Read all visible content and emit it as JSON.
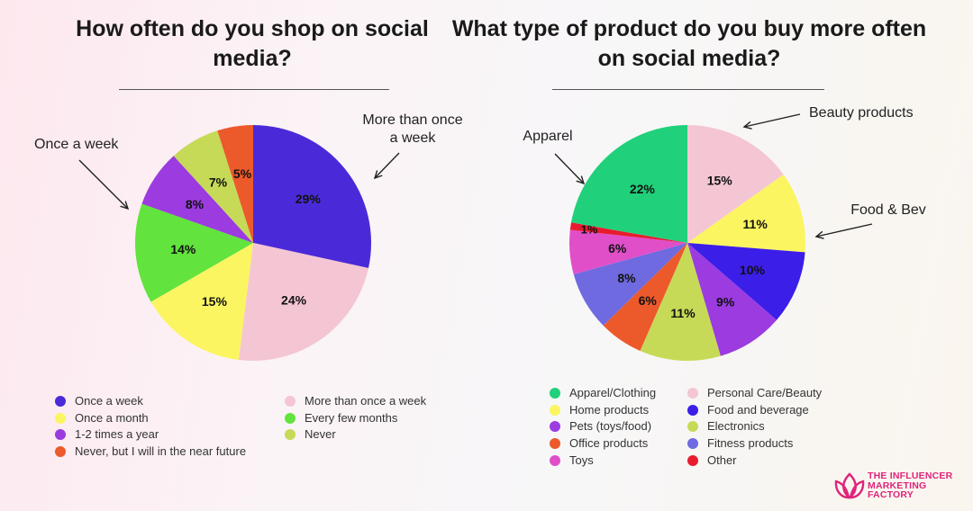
{
  "charts": {
    "left_title": "How often do you shop on social media?",
    "right_title": "What type of product do you buy more often on social media?"
  },
  "chart_data": [
    {
      "type": "pie",
      "title": "How often do you shop on social media?",
      "slices": [
        {
          "label": "Once a week",
          "value": 29,
          "display": "29%",
          "color": "#4a2ad8"
        },
        {
          "label": "More than once a week",
          "value": 24,
          "display": "24%",
          "color": "#f4c6d4"
        },
        {
          "label": "Once a month",
          "value": 15,
          "display": "15%",
          "color": "#fbf562"
        },
        {
          "label": "Every few months",
          "value": 14,
          "display": "14%",
          "color": "#62e33d"
        },
        {
          "label": "1-2 times a year",
          "value": 8,
          "display": "8%",
          "color": "#9b3be0"
        },
        {
          "label": "Never",
          "value": 7,
          "display": "7%",
          "color": "#c6da58"
        },
        {
          "label": "Never, but I will in the near future",
          "value": 5,
          "display": "5%",
          "color": "#ec5a2c"
        }
      ],
      "annotations": [
        "Once a week",
        "More than once\na week"
      ]
    },
    {
      "type": "pie",
      "title": "What type of product do you buy more often on social media?",
      "slices": [
        {
          "label": "Personal Care/Beauty",
          "value": 15,
          "display": "15%",
          "color": "#f4c6d4"
        },
        {
          "label": "Home products",
          "value": 11,
          "display": "11%",
          "color": "#fbf562"
        },
        {
          "label": "Food and beverage",
          "value": 10,
          "display": "10%",
          "color": "#3b1ee8"
        },
        {
          "label": "Pets (toys/food)",
          "value": 9,
          "display": "9%",
          "color": "#9b3be0"
        },
        {
          "label": "Electronics",
          "value": 11,
          "display": "11%",
          "color": "#c6da58"
        },
        {
          "label": "Office products",
          "value": 6,
          "display": "6%",
          "color": "#ec5a2c"
        },
        {
          "label": "Fitness products",
          "value": 8,
          "display": "8%",
          "color": "#6f6ae0"
        },
        {
          "label": "Toys",
          "value": 6,
          "display": "6%",
          "color": "#e04fc8"
        },
        {
          "label": "Other",
          "value": 1,
          "display": "1%",
          "color": "#e81b2e"
        },
        {
          "label": "Apparel/Clothing",
          "value": 22,
          "display": "22%",
          "color": "#21d07a"
        }
      ],
      "annotations": [
        "Apparel",
        "Beauty products",
        "Food & Bev"
      ]
    }
  ],
  "legend1": [
    {
      "label": "Once a week",
      "color": "#4a2ad8"
    },
    {
      "label": "More than once a week",
      "color": "#f4c6d4"
    },
    {
      "label": "Once a month",
      "color": "#fbf562"
    },
    {
      "label": "Every few months",
      "color": "#62e33d"
    },
    {
      "label": "1-2 times a year",
      "color": "#9b3be0"
    },
    {
      "label": "Never",
      "color": "#c6da58"
    },
    {
      "label": "Never, but I will in the near future",
      "color": "#ec5a2c"
    }
  ],
  "legend2": [
    {
      "label": "Apparel/Clothing",
      "color": "#21d07a"
    },
    {
      "label": "Personal Care/Beauty",
      "color": "#f4c6d4"
    },
    {
      "label": "Home products",
      "color": "#fbf562"
    },
    {
      "label": "Food and beverage",
      "color": "#3b1ee8"
    },
    {
      "label": "Pets (toys/food)",
      "color": "#9b3be0"
    },
    {
      "label": "Electronics",
      "color": "#c6da58"
    },
    {
      "label": "Office products",
      "color": "#ec5a2c"
    },
    {
      "label": "Fitness products",
      "color": "#6f6ae0"
    },
    {
      "label": "Toys",
      "color": "#e04fc8"
    },
    {
      "label": "Other",
      "color": "#e81b2e"
    }
  ],
  "brand": {
    "line1": "THE INFLUENCER",
    "line2": "MARKETING",
    "line3": "FACTORY",
    "color": "#e0247a"
  }
}
